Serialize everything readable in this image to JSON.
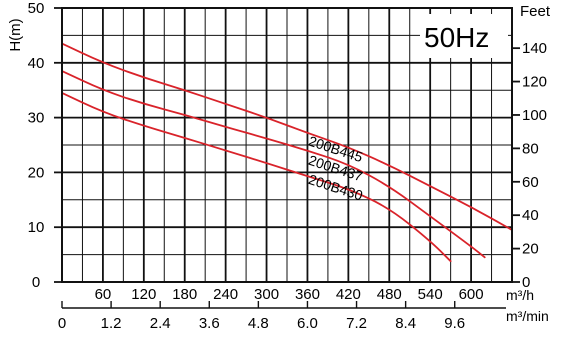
{
  "badge": "50Hz",
  "chart_data": {
    "type": "line",
    "ylabel": "H(m)",
    "ylabel_right": "Feet",
    "xlabel_m3h": "m³/h",
    "xlabel_m3min": "m³/min",
    "ylim": [
      0,
      50
    ],
    "xlim_m3h": [
      0,
      660
    ],
    "yticks_left": [
      "0",
      "10",
      "20",
      "30",
      "40",
      "50"
    ],
    "yticks_left_values": [
      0,
      10,
      20,
      30,
      40,
      50
    ],
    "yticks_right": [
      "0",
      "20",
      "40",
      "60",
      "80",
      "100",
      "120",
      "140"
    ],
    "yticks_right_values": [
      0,
      20,
      40,
      60,
      80,
      100,
      120,
      140
    ],
    "xticks_m3h": [
      "60",
      "120",
      "180",
      "240",
      "300",
      "360",
      "420",
      "480",
      "540",
      "600"
    ],
    "xticks_m3h_values": [
      60,
      120,
      180,
      240,
      300,
      360,
      420,
      480,
      540,
      600
    ],
    "xticks_m3min": [
      "0",
      "1.2",
      "2.4",
      "3.6",
      "4.8",
      "6.0",
      "7.2",
      "8.4",
      "9.6"
    ],
    "xticks_m3min_values": [
      0,
      1.2,
      2.4,
      3.6,
      4.8,
      6.0,
      7.2,
      8.4,
      9.6
    ],
    "grid": true,
    "series_color": "#d9232a",
    "series": [
      {
        "name": "200B445",
        "x": [
          0,
          60,
          120,
          180,
          240,
          300,
          360,
          420,
          480,
          540,
          600,
          660
        ],
        "y": [
          43.5,
          40,
          37.3,
          35,
          32.5,
          30,
          27.2,
          24.6,
          21.3,
          17.5,
          13.7,
          9.5
        ]
      },
      {
        "name": "200B437",
        "x": [
          0,
          60,
          120,
          180,
          240,
          300,
          360,
          420,
          480,
          540,
          600,
          620
        ],
        "y": [
          38.5,
          35,
          32.5,
          30.5,
          28.3,
          26.2,
          24,
          21.5,
          17.5,
          12,
          6.5,
          4.5
        ]
      },
      {
        "name": "200B430",
        "x": [
          0,
          60,
          120,
          180,
          240,
          300,
          360,
          420,
          480,
          540,
          570
        ],
        "y": [
          34.5,
          31,
          28.5,
          26.3,
          24,
          21.7,
          19.3,
          17,
          13.5,
          7.5,
          3.8
        ]
      }
    ],
    "series_label_x": [
      360,
      360,
      360
    ],
    "series_label_y": [
      25,
      21.5,
      18
    ]
  }
}
